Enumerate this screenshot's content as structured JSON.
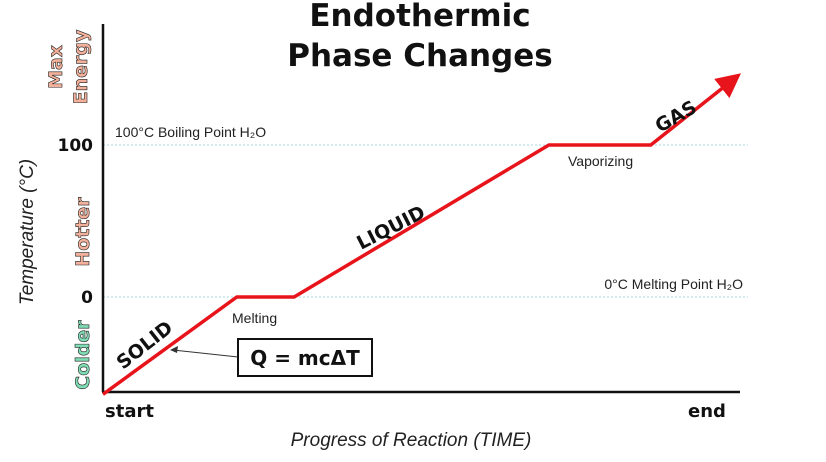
{
  "chart_data": {
    "type": "line",
    "title_line1": "Endothermic",
    "title_line2": "Phase Changes",
    "ylabel": "Temperature (°C)",
    "xlabel": "Progress of Reaction (TIME)",
    "x_labels": {
      "start": "start",
      "end": "end"
    },
    "y_ticks": [
      {
        "value": 0,
        "label": "0"
      },
      {
        "value": 100,
        "label": "100"
      }
    ],
    "reference_lines": [
      {
        "value": 100,
        "label": "100°C Boiling Point H₂O"
      },
      {
        "value": 0,
        "label": "0°C Melting Point H₂O"
      }
    ],
    "side_labels": {
      "colder": "Colder",
      "hotter": "Hotter",
      "max_energy_line1": "Max",
      "max_energy_line2": "Energy"
    },
    "phase_labels": [
      "SOLID",
      "LIQUID",
      "GAS"
    ],
    "process_labels": [
      "Melting",
      "Vaporizing"
    ],
    "equation": "Q = mcΔT",
    "series": [
      {
        "color": "#e8141b",
        "x": [
          0,
          0.21,
          0.3,
          0.7,
          0.86,
          0.98
        ],
        "y": [
          -64,
          0,
          0,
          100,
          100,
          140
        ]
      }
    ],
    "colors": {
      "curve": "#e8141b",
      "colder": "#7fdcb4",
      "hotter": "#f3b09a",
      "max_energy": "#f3b09a",
      "reference_line": "#a9d8df"
    }
  }
}
